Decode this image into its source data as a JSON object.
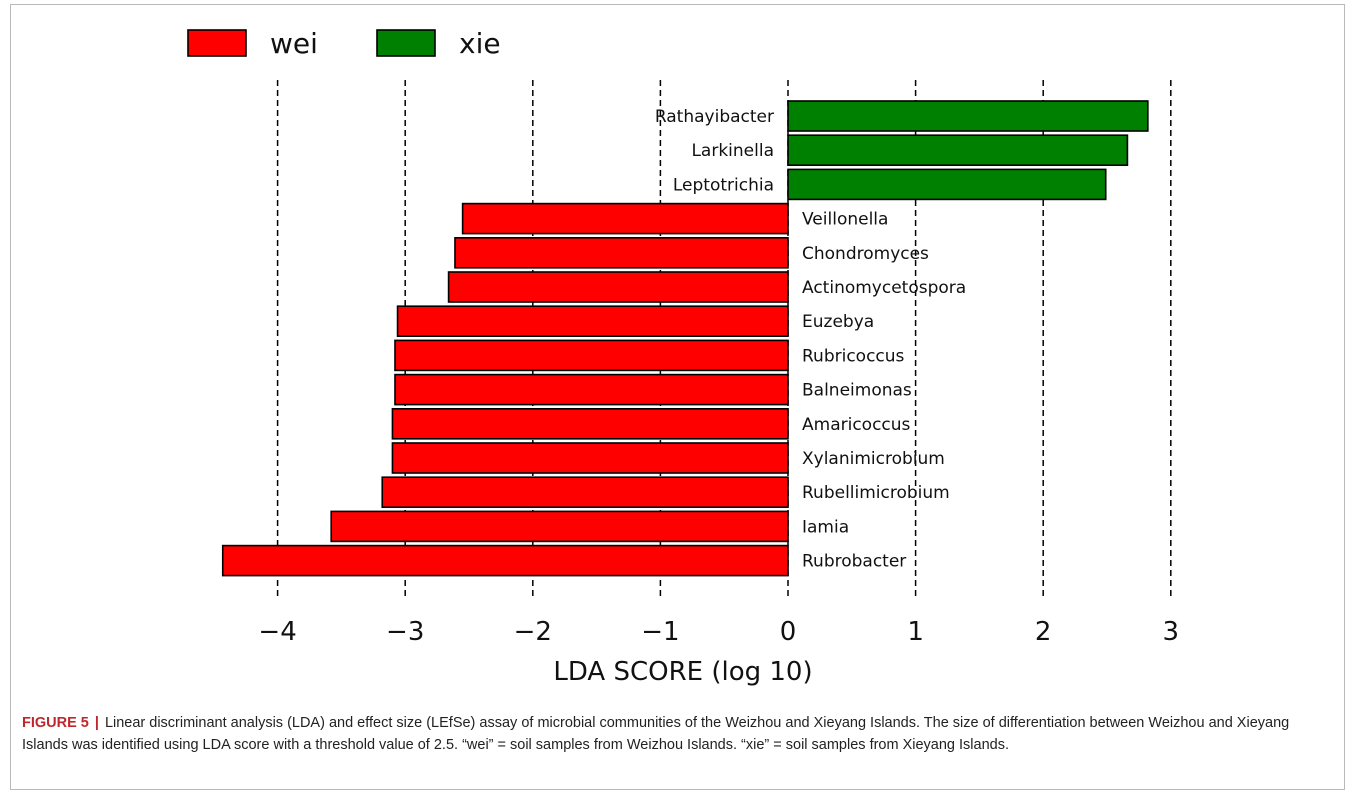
{
  "figure": {
    "label": "FIGURE 5",
    "separator": "|",
    "caption": "Linear discriminant analysis (LDA) and effect size (LEfSe) assay of microbial communities of the Weizhou and Xieyang Islands. The size of differentiation between Weizhou and Xieyang Islands was identified using LDA score with a threshold value of 2.5. “wei” = soil samples from Weizhou Islands. “xie” = soil samples from Xieyang Islands."
  },
  "colors": {
    "wei": "#ff0000",
    "xie": "#008000"
  },
  "chart_data": {
    "type": "bar",
    "orientation": "horizontal",
    "title": "",
    "xlabel": "LDA SCORE (log 10)",
    "ylabel": "",
    "xlim": [
      -4.5,
      3.1
    ],
    "xticks": [
      -4,
      -3,
      -2,
      -1,
      0,
      1,
      2,
      3
    ],
    "xtick_labels": [
      "−4",
      "−3",
      "−2",
      "−1",
      "0",
      "1",
      "2",
      "3"
    ],
    "grid": "vertical dashed lines at ticks",
    "legend": {
      "placement": "top-left",
      "entries": [
        {
          "name": "wei",
          "color": "#ff0000"
        },
        {
          "name": "xie",
          "color": "#008000"
        }
      ]
    },
    "categories": [
      "Rathayibacter",
      "Larkinella",
      "Leptotrichia",
      "Veillonella",
      "Chondromyces",
      "Actinomycetospora",
      "Euzebya",
      "Rubricoccus",
      "Balneimonas",
      "Amaricoccus",
      "Xylanimicrobium",
      "Rubellimicrobium",
      "Iamia",
      "Rubrobacter"
    ],
    "values": [
      2.82,
      2.66,
      2.49,
      -2.55,
      -2.61,
      -2.66,
      -3.06,
      -3.08,
      -3.08,
      -3.1,
      -3.1,
      -3.18,
      -3.58,
      -4.43
    ],
    "groups": [
      "xie",
      "xie",
      "xie",
      "wei",
      "wei",
      "wei",
      "wei",
      "wei",
      "wei",
      "wei",
      "wei",
      "wei",
      "wei",
      "wei"
    ]
  }
}
